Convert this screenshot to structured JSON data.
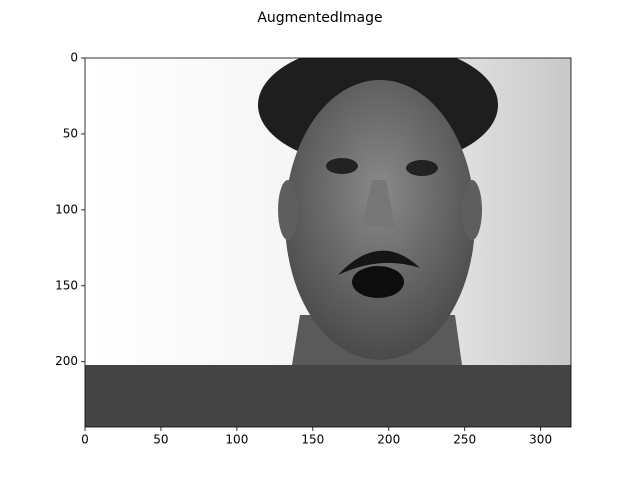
{
  "chart_data": {
    "type": "image",
    "title": "AugmentedImage",
    "xlim": [
      0,
      320
    ],
    "xticks": [
      0,
      50,
      100,
      150,
      200,
      250,
      300
    ],
    "ylim": [
      243,
      0
    ],
    "yticks": [
      0,
      50,
      100,
      150,
      200
    ]
  }
}
